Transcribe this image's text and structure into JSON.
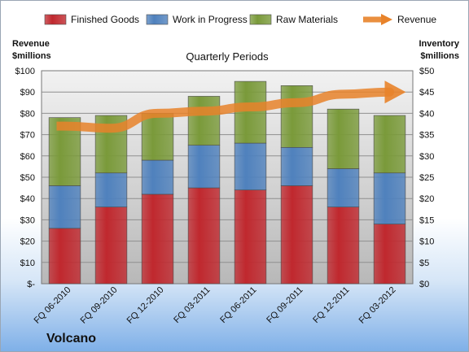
{
  "chart_data": {
    "type": "bar",
    "stacked": true,
    "subtitle": "Quarterly Periods",
    "brand": "Volcano",
    "categories": [
      "FQ 06-2010",
      "FQ 09-2010",
      "FQ 12-2010",
      "FQ 03-2011",
      "FQ 06-2011",
      "FQ 09-2011",
      "FQ 12-2011",
      "FQ 03-2012"
    ],
    "series": [
      {
        "name": "Finished Goods",
        "color": "#c0282e",
        "axis": "right",
        "values": [
          13,
          18,
          21,
          22.5,
          22,
          23,
          18,
          14
        ]
      },
      {
        "name": "Work in Progress",
        "color": "#4f81bd",
        "axis": "right",
        "values": [
          10,
          8,
          8,
          10,
          11,
          9,
          9,
          12
        ]
      },
      {
        "name": "Raw Materials",
        "color": "#7a9a3a",
        "axis": "right",
        "values": [
          16,
          13.5,
          11,
          11.5,
          14.5,
          14.5,
          14,
          13.5
        ]
      },
      {
        "name": "Revenue",
        "color": "#e8832a",
        "axis": "left",
        "type": "line",
        "values": [
          74,
          73,
          80,
          81,
          83,
          85,
          89,
          90
        ]
      }
    ],
    "y_left": {
      "label_line1": "Revenue",
      "label_line2": "$millions",
      "ylim": [
        0,
        100
      ],
      "ticks": [
        "$-",
        "$10",
        "$20",
        "$30",
        "$40",
        "$50",
        "$60",
        "$70",
        "$80",
        "$90",
        "$100"
      ]
    },
    "y_right": {
      "label_line1": "Inventory",
      "label_line2": "$millions",
      "ylim": [
        0,
        50
      ],
      "ticks": [
        "$0",
        "$5",
        "$10",
        "$15",
        "$20",
        "$25",
        "$30",
        "$35",
        "$40",
        "$45",
        "$50"
      ]
    },
    "grid": true,
    "legend_position": "top"
  }
}
